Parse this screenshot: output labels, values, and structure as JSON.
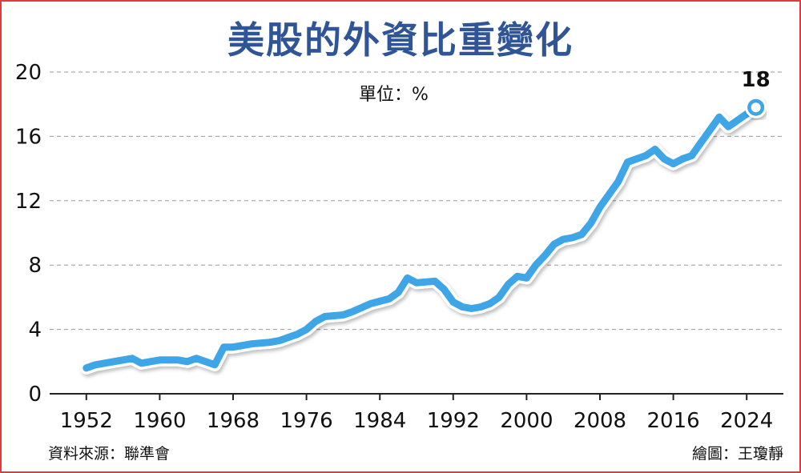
{
  "chart_data": {
    "type": "line",
    "title": "美股的外資比重變化",
    "unit_label": "單位：%",
    "source": "資料來源：聯準會",
    "credit": "繪圖：王瓊靜",
    "xlabel": "",
    "ylabel": "",
    "xlim": [
      1948,
      2028
    ],
    "ylim": [
      0,
      20
    ],
    "y_ticks": [
      0,
      4,
      8,
      12,
      16,
      20
    ],
    "x_ticks": [
      1952,
      1960,
      1968,
      1976,
      1984,
      1992,
      2000,
      2008,
      2016,
      2024
    ],
    "grid": "horizontal dashed",
    "line_color": "#3ea6e6",
    "end_label": "18",
    "series": [
      {
        "x": [
          1952,
          1953,
          1955,
          1957,
          1958,
          1960,
          1962,
          1963,
          1964,
          1966,
          1967,
          1968,
          1969,
          1970,
          1972,
          1973,
          1975,
          1976,
          1977,
          1978,
          1980,
          1981,
          1983,
          1985,
          1986,
          1987,
          1988,
          1990,
          1991,
          1992,
          1993,
          1994,
          1995,
          1996,
          1997,
          1998,
          1999,
          2000,
          2001,
          2002,
          2003,
          2004,
          2005,
          2006,
          2007,
          2008,
          2009,
          2010,
          2011,
          2012,
          2013,
          2014,
          2015,
          2016,
          2017,
          2018,
          2019,
          2020,
          2021,
          2022,
          2023,
          2024,
          2025
        ],
        "y": [
          1.6,
          1.8,
          2.0,
          2.2,
          1.9,
          2.1,
          2.1,
          2.0,
          2.2,
          1.8,
          2.9,
          2.9,
          3.0,
          3.1,
          3.2,
          3.3,
          3.7,
          4.0,
          4.5,
          4.8,
          4.9,
          5.1,
          5.6,
          5.9,
          6.3,
          7.2,
          6.9,
          7.0,
          6.5,
          5.7,
          5.4,
          5.3,
          5.4,
          5.6,
          6.0,
          6.8,
          7.3,
          7.2,
          8.0,
          8.6,
          9.3,
          9.6,
          9.7,
          9.9,
          10.6,
          11.6,
          12.4,
          13.2,
          14.4,
          14.6,
          14.8,
          15.2,
          14.6,
          14.3,
          14.6,
          14.8,
          15.6,
          16.4,
          17.2,
          16.6,
          17.0,
          17.4,
          17.8
        ]
      }
    ]
  }
}
